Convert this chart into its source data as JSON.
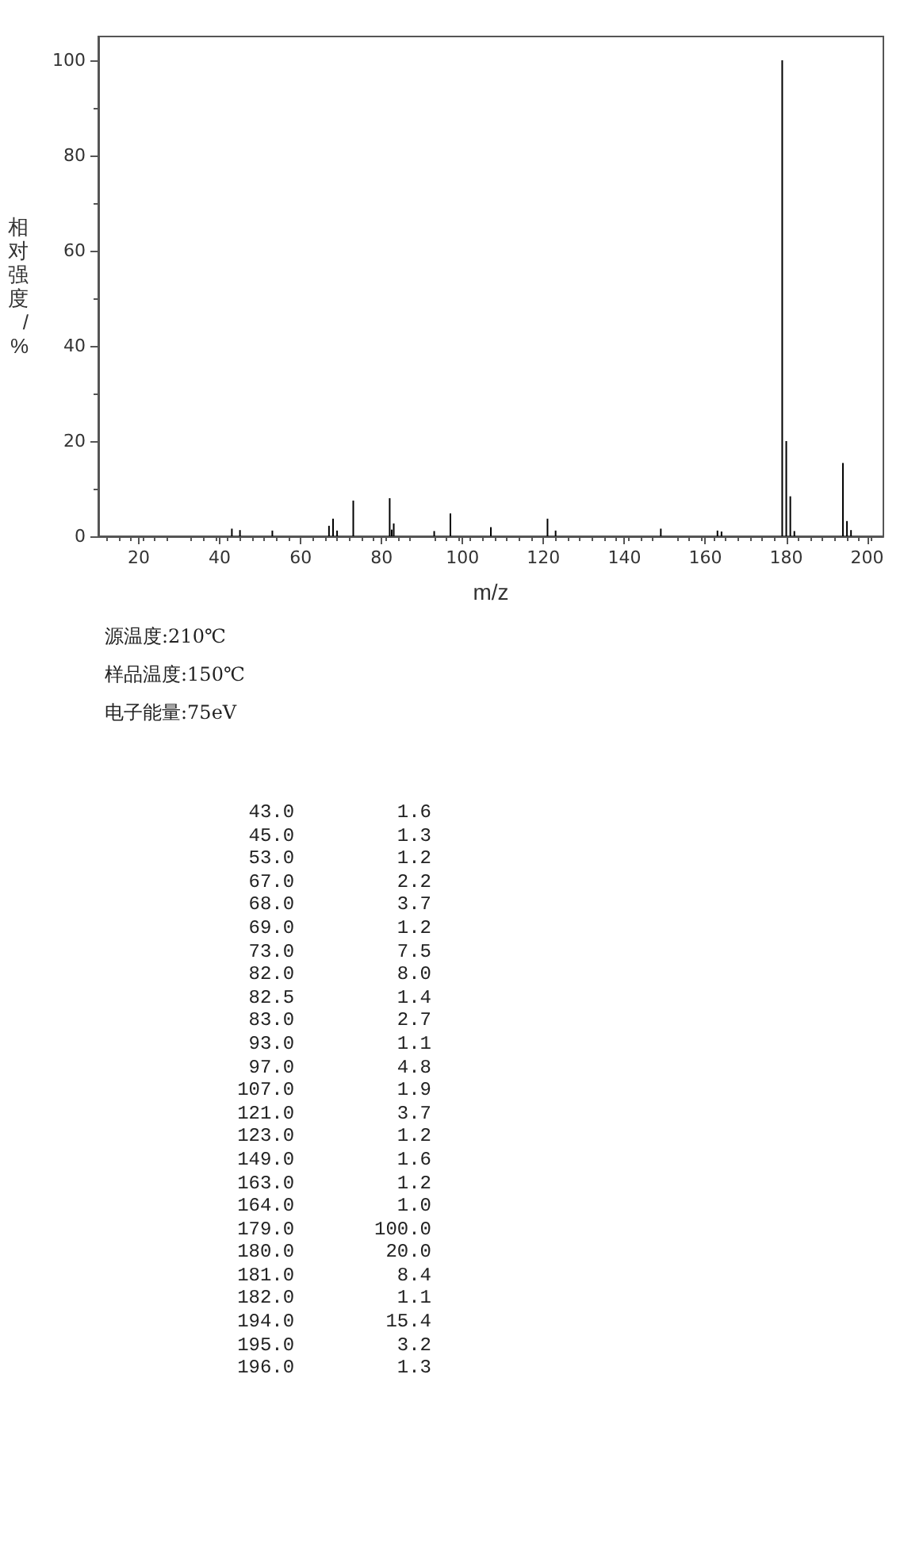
{
  "chart_data": {
    "type": "bar",
    "xlabel": "m/z",
    "ylabel": "相对强度/%",
    "x": [
      43.0,
      45.0,
      53.0,
      67.0,
      68.0,
      69.0,
      73.0,
      82.0,
      82.5,
      83.0,
      93.0,
      97.0,
      107.0,
      121.0,
      123.0,
      149.0,
      163.0,
      164.0,
      179.0,
      180.0,
      181.0,
      182.0,
      194.0,
      195.0,
      196.0
    ],
    "values": [
      1.6,
      1.3,
      1.2,
      2.2,
      3.7,
      1.2,
      7.5,
      8.0,
      1.4,
      2.7,
      1.1,
      4.8,
      1.9,
      3.7,
      1.2,
      1.6,
      1.2,
      1.0,
      100.0,
      20.0,
      8.4,
      1.1,
      15.4,
      3.2,
      1.3
    ],
    "color": "#000000",
    "xlim": [
      10,
      204
    ],
    "xticks": [
      20,
      40,
      60,
      80,
      100,
      120,
      140,
      160,
      180,
      200
    ],
    "ylim": [
      0,
      105
    ],
    "yticks": [
      0,
      20,
      40,
      60,
      80,
      100
    ],
    "grid": false,
    "annotations": [
      "源温度:210℃",
      "样品温度:150℃",
      "电子能量:75eV",
      "43.0         1.6",
      "45.0         1.3",
      "53.0         1.2",
      "67.0         2.2",
      "68.0         3.7",
      "69.0         1.2",
      "73.0         7.5",
      "82.0         8.0",
      "82.5         1.4",
      "83.0         2.7",
      "93.0         1.1",
      "97.0         4.8",
      "107.0         1.9",
      "121.0         3.7",
      "123.0         1.2",
      "149.0         1.6",
      "163.0         1.2",
      "164.0         1.0",
      "179.0       100.0",
      "180.0        20.0",
      "181.0         8.4",
      "182.0         1.1",
      "194.0        15.4",
      "195.0         3.2",
      "196.0         1.3"
    ]
  }
}
